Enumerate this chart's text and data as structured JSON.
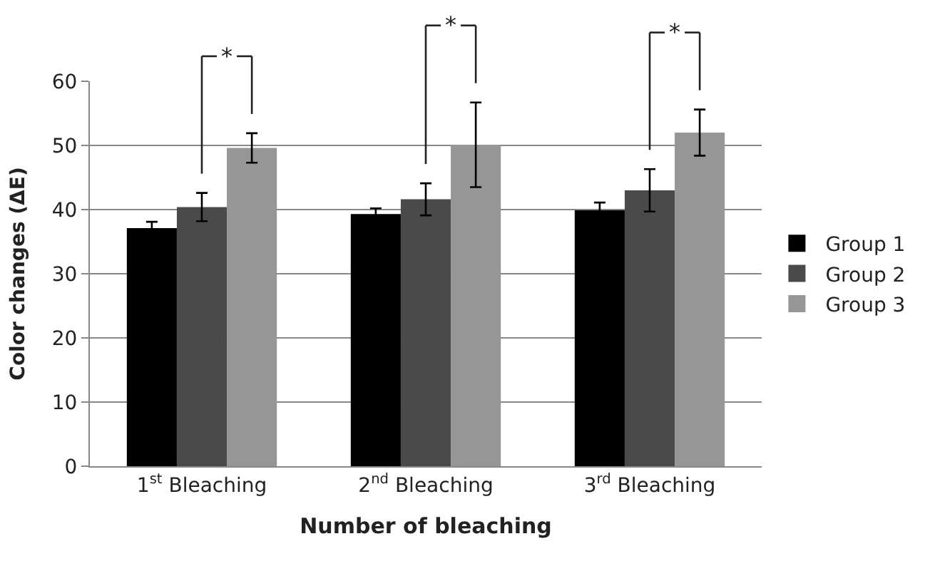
{
  "chart_data": {
    "type": "bar",
    "xlabel": "Number of bleaching",
    "ylabel": "Color changes (ΔE)",
    "categories": [
      "1$^{st}$ Bleaching",
      "2$^{nd}$ Bleaching",
      "3$^{rd}$ Bleaching"
    ],
    "series": [
      {
        "name": "Group 1",
        "color": "#000000",
        "values": [
          37.1,
          39.3,
          39.9
        ],
        "errors": [
          1.0,
          0.9,
          1.2
        ]
      },
      {
        "name": "Group 2",
        "color": "#4a4a4a",
        "values": [
          40.4,
          41.6,
          43.0
        ],
        "errors": [
          2.2,
          2.5,
          3.3
        ]
      },
      {
        "name": "Group 3",
        "color": "#969696",
        "values": [
          49.6,
          50.1,
          52.0
        ],
        "errors": [
          2.3,
          6.6,
          3.6
        ]
      }
    ],
    "ylim": [
      0,
      60
    ],
    "yticks": [
      0,
      10,
      20,
      30,
      40,
      50,
      60
    ],
    "grid": "y",
    "legend": "right",
    "annotations": [
      "*",
      "*",
      "*"
    ]
  }
}
